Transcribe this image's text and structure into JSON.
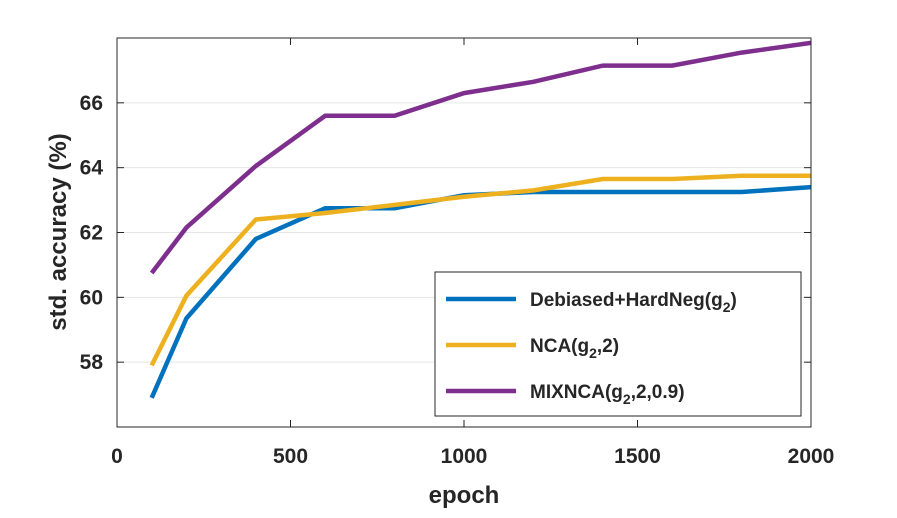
{
  "chart_data": {
    "type": "line",
    "xlabel": "epoch",
    "ylabel": "std. accuracy (%)",
    "xlim": [
      0,
      2000
    ],
    "ylim": [
      56,
      68
    ],
    "xticks": [
      "0",
      "500",
      "1000",
      "1500",
      "2000"
    ],
    "yticks": [
      "58",
      "60",
      "62",
      "64",
      "66"
    ],
    "grid": "horizontal",
    "legend_position": "bottom-right",
    "series": [
      {
        "name": "Debiased+HardNeg",
        "sub": "2",
        "legend_parts": [
          "Debiased+HardNeg(g",
          "2",
          ")"
        ],
        "color": "#0072BD",
        "x": [
          100,
          200,
          400,
          600,
          800,
          1000,
          1200,
          1400,
          1600,
          1800,
          2000
        ],
        "values": [
          56.9,
          59.35,
          61.8,
          62.75,
          62.75,
          63.15,
          63.25,
          63.25,
          63.25,
          63.25,
          63.4
        ]
      },
      {
        "name": "NCA",
        "sub": "2",
        "legend_parts": [
          "NCA(g",
          "2",
          ",2)"
        ],
        "color": "#EDB120",
        "x": [
          100,
          200,
          400,
          600,
          800,
          1000,
          1200,
          1400,
          1600,
          1800,
          2000
        ],
        "values": [
          57.9,
          60.05,
          62.4,
          62.6,
          62.85,
          63.1,
          63.3,
          63.65,
          63.65,
          63.75,
          63.75
        ]
      },
      {
        "name": "MIXNCA",
        "sub": "2",
        "legend_parts": [
          "MIXNCA(g",
          "2",
          ",2,0.9)"
        ],
        "color": "#7E2F8E",
        "x": [
          100,
          200,
          400,
          600,
          800,
          1000,
          1200,
          1400,
          1600,
          1800,
          2000
        ],
        "values": [
          60.75,
          62.15,
          64.05,
          65.6,
          65.6,
          66.3,
          66.65,
          67.15,
          67.15,
          67.55,
          67.85
        ]
      }
    ]
  }
}
